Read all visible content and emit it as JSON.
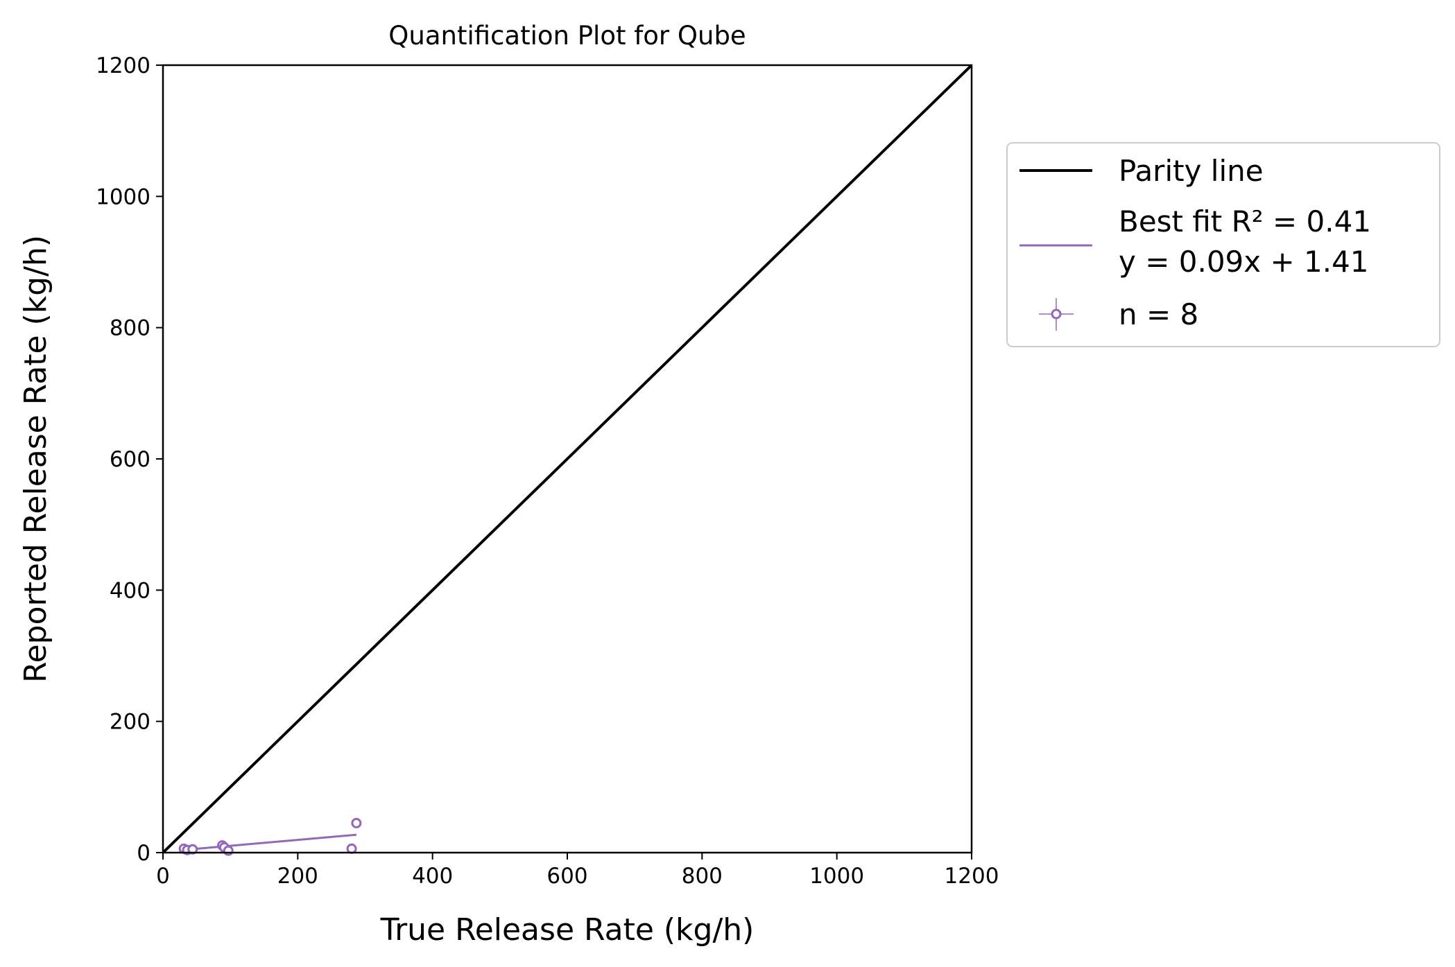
{
  "chart_data": {
    "type": "scatter",
    "title": "Quantification Plot for Qube",
    "xlabel": "True Release Rate (kg/h)",
    "ylabel": "Reported Release Rate (kg/h)",
    "xlim": [
      0,
      1200
    ],
    "ylim": [
      0,
      1200
    ],
    "xticks": [
      "0",
      "200",
      "400",
      "600",
      "800",
      "1000",
      "1200"
    ],
    "yticks": [
      "0",
      "200",
      "400",
      "600",
      "800",
      "1000",
      "1200"
    ],
    "grid": false,
    "legend_position": "outside-right",
    "colors": {
      "parity": "#000000",
      "series": "#9467bd"
    },
    "parity_line": {
      "name": "Parity line",
      "x": [
        0,
        1200
      ],
      "y": [
        0,
        1200
      ]
    },
    "best_fit": {
      "label_line1": "Best fit R² = 0.41",
      "label_line2": "y = 0.09x + 1.41",
      "slope": 0.09,
      "intercept": 1.41,
      "x_range": [
        30,
        287
      ]
    },
    "series": [
      {
        "name": "n = 8",
        "points": [
          {
            "x": 31,
            "y": 6
          },
          {
            "x": 36,
            "y": 4
          },
          {
            "x": 44,
            "y": 5
          },
          {
            "x": 88,
            "y": 11
          },
          {
            "x": 91,
            "y": 8
          },
          {
            "x": 97,
            "y": 3
          },
          {
            "x": 280,
            "y": 6
          },
          {
            "x": 287,
            "y": 45
          }
        ]
      }
    ]
  }
}
